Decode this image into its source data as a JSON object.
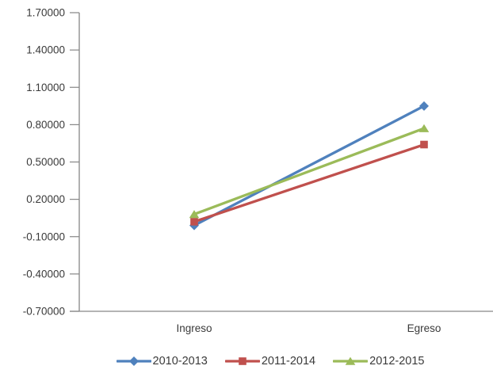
{
  "chart_data": {
    "type": "line",
    "title": "",
    "xlabel": "",
    "ylabel": "",
    "categories": [
      "Ingreso",
      "Egreso"
    ],
    "series": [
      {
        "name": "2010-2013",
        "marker": "diamond",
        "color": "#4F81BD",
        "values": [
          -0.01,
          0.95
        ]
      },
      {
        "name": "2011-2014",
        "marker": "square",
        "color": "#C0504D",
        "values": [
          0.02,
          0.64
        ]
      },
      {
        "name": "2012-2015",
        "marker": "triangle",
        "color": "#9BBB59",
        "values": [
          0.08,
          0.77
        ]
      }
    ],
    "ylim": [
      -0.7,
      1.7
    ],
    "ytick_step": 0.3,
    "ytick_values": [
      1.7,
      1.4,
      1.1,
      0.8,
      0.5,
      0.2,
      -0.1,
      -0.4,
      -0.7
    ],
    "ytick_labels": [
      "1.70000",
      "1.40000",
      "1.10000",
      "0.80000",
      "0.50000",
      "0.20000",
      "-0.10000",
      "-0.40000",
      "-0.70000"
    ],
    "grid": false,
    "legend_position": "bottom",
    "axis_color": "#868686",
    "text_color": "#3a3a3a",
    "background_color": "#ffffff"
  }
}
